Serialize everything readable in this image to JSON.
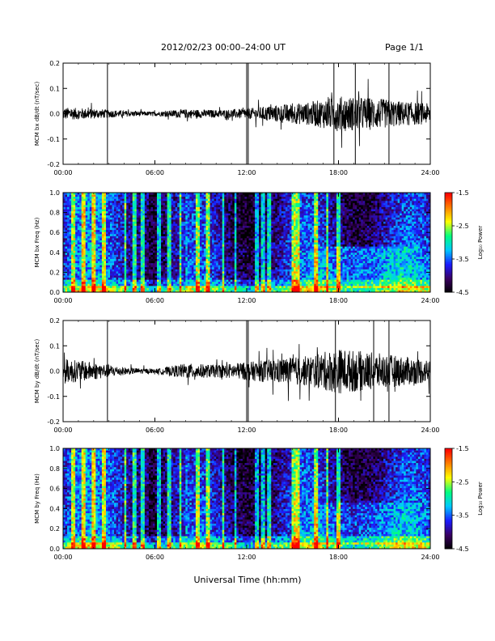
{
  "header": {
    "title": "2012/02/23  00:00–24:00 UT",
    "page": "Page 1/1"
  },
  "footer": {
    "x_axis_title": "Universal Time (hh:mm)"
  },
  "colorbar": {
    "label": "Log₁₀ Power",
    "ticks": [
      "-1.5",
      "-2.5",
      "-3.5",
      "-4.5"
    ],
    "range": [
      -4.5,
      -1.5
    ],
    "colormap": [
      "#000000",
      "#3a0060",
      "#1a1aff",
      "#00c8ff",
      "#00ff80",
      "#ffff00",
      "#ff8000",
      "#ff0000"
    ]
  },
  "chart_data": [
    {
      "type": "line",
      "ylabel": "MCM bx dB/dt (nT/sec)",
      "xlim": [
        0,
        24
      ],
      "ylim": [
        -0.2,
        0.2
      ],
      "x_ticks": [
        "00:00",
        "06:00",
        "12:00",
        "18:00",
        "24:00"
      ],
      "y_ticks": [
        "0.2",
        "0.1",
        "0.0",
        "-0.1",
        "-0.2"
      ],
      "envelope": [
        {
          "hour": 0,
          "amp": 0.025
        },
        {
          "hour": 2,
          "amp": 0.02
        },
        {
          "hour": 4,
          "amp": 0.012
        },
        {
          "hour": 6,
          "amp": 0.008
        },
        {
          "hour": 8,
          "amp": 0.018
        },
        {
          "hour": 10,
          "amp": 0.015
        },
        {
          "hour": 12,
          "amp": 0.02
        },
        {
          "hour": 14,
          "amp": 0.035
        },
        {
          "hour": 16,
          "amp": 0.045
        },
        {
          "hour": 18,
          "amp": 0.07
        },
        {
          "hour": 20,
          "amp": 0.065
        },
        {
          "hour": 22,
          "amp": 0.05
        },
        {
          "hour": 24,
          "amp": 0.04
        }
      ],
      "spikes_hours": [
        2.9,
        12.0,
        12.1,
        17.7,
        19.1,
        21.3
      ]
    },
    {
      "type": "heatmap",
      "ylabel": "MCM bx Freq (Hz)",
      "xlim": [
        0,
        24
      ],
      "ylim": [
        0,
        1.0
      ],
      "x_ticks": [
        "00:00",
        "06:00",
        "12:00",
        "18:00",
        "24:00"
      ],
      "y_ticks": [
        "1.0",
        "0.8",
        "0.6",
        "0.4",
        "0.2",
        "0.0"
      ],
      "zlim": [
        -4.5,
        -1.5
      ]
    },
    {
      "type": "line",
      "ylabel": "MCM by dB/dt (nT/sec)",
      "xlim": [
        0,
        24
      ],
      "ylim": [
        -0.2,
        0.2
      ],
      "x_ticks": [
        "00:00",
        "06:00",
        "12:00",
        "18:00",
        "24:00"
      ],
      "y_ticks": [
        "0.2",
        "0.1",
        "0.0",
        "-0.1",
        "-0.2"
      ],
      "envelope": [
        {
          "hour": 0,
          "amp": 0.05
        },
        {
          "hour": 2,
          "amp": 0.035
        },
        {
          "hour": 4,
          "amp": 0.015
        },
        {
          "hour": 6,
          "amp": 0.008
        },
        {
          "hour": 8,
          "amp": 0.03
        },
        {
          "hour": 10,
          "amp": 0.025
        },
        {
          "hour": 12,
          "amp": 0.035
        },
        {
          "hour": 14,
          "amp": 0.05
        },
        {
          "hour": 16,
          "amp": 0.06
        },
        {
          "hour": 18,
          "amp": 0.09
        },
        {
          "hour": 20,
          "amp": 0.075
        },
        {
          "hour": 22,
          "amp": 0.06
        },
        {
          "hour": 24,
          "amp": 0.045
        }
      ],
      "spikes_hours": [
        2.9,
        12.0,
        12.1,
        17.8,
        20.3,
        21.3
      ]
    },
    {
      "type": "heatmap",
      "ylabel": "MCM by Freq (Hz)",
      "xlim": [
        0,
        24
      ],
      "ylim": [
        0,
        1.0
      ],
      "x_ticks": [
        "00:00",
        "06:00",
        "12:00",
        "18:00",
        "24:00"
      ],
      "y_ticks": [
        "1.0",
        "0.8",
        "0.6",
        "0.4",
        "0.2",
        "0.0"
      ],
      "zlim": [
        -4.5,
        -1.5
      ]
    }
  ]
}
